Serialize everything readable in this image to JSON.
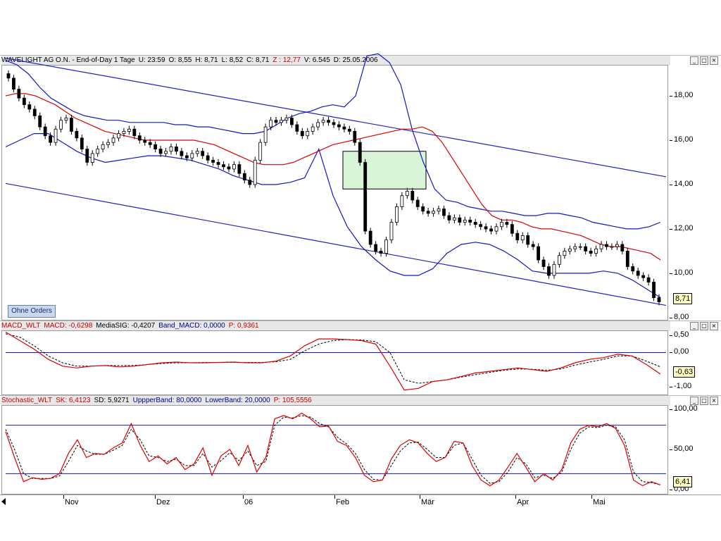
{
  "main_panel": {
    "title_parts": [
      {
        "text": "WAVELIGHT AG O.N. - End-of-Day 1 Tage",
        "color": "blk"
      },
      {
        "text": "U: 23:59",
        "color": "blk"
      },
      {
        "text": "O: 8,55",
        "color": "blk"
      },
      {
        "text": "H: 8,71",
        "color": "blk"
      },
      {
        "text": "L: 8,52",
        "color": "blk"
      },
      {
        "text": "C: 8,71",
        "color": "blk"
      },
      {
        "text": "Z : 12,77",
        "color": "red"
      },
      {
        "text": "V: 6.545",
        "color": "blk"
      },
      {
        "text": "D: 25.05.2006",
        "color": "blk"
      }
    ],
    "last_value": "8,71",
    "orders_button": "Ohne Orders"
  },
  "macd_panel": {
    "title_parts": [
      {
        "text": "MACD_WLT",
        "color": "red"
      },
      {
        "text": "MACD: -0,6298",
        "color": "red"
      },
      {
        "text": "MediaSIG: -0,4207",
        "color": "blk"
      },
      {
        "text": "Band_MACD: 0,0000",
        "color": "blu"
      },
      {
        "text": "P: 0,9361",
        "color": "red"
      }
    ],
    "last_value": "-0,63"
  },
  "stoch_panel": {
    "title_parts": [
      {
        "text": "Stochastic_WLT",
        "color": "red"
      },
      {
        "text": "SK: 6,4123",
        "color": "red"
      },
      {
        "text": "SD: 5,9271",
        "color": "blk"
      },
      {
        "text": "UppperBand: 80,0000",
        "color": "blu"
      },
      {
        "text": "LowerBand: 20,0000",
        "color": "blu"
      },
      {
        "text": "P: 105,5556",
        "color": "red"
      }
    ],
    "last_value": "6,41"
  },
  "window_buttons": [
    "_",
    "□",
    "×"
  ],
  "chart_data": [
    {
      "type": "candlestick",
      "title": "WAVELIGHT AG O.N. - End-of-Day 1 Tage",
      "ylim": [
        7.9,
        19.4
      ],
      "y_ticks": [
        "8,00",
        "10,00",
        "12,00",
        "14,00",
        "16,00",
        "18,00"
      ],
      "x_labels": [
        "Nov",
        "Dez",
        "06",
        "Feb",
        "Mär",
        "Apr",
        "Mai"
      ],
      "close_approx": [
        18.8,
        18.3,
        17.9,
        17.6,
        17.4,
        17.1,
        16.6,
        16.2,
        15.9,
        16.5,
        16.9,
        17.0,
        16.4,
        16.1,
        15.6,
        15.0,
        15.4,
        15.6,
        15.8,
        15.9,
        16.1,
        16.3,
        16.4,
        16.5,
        16.2,
        16.0,
        15.9,
        15.8,
        15.6,
        15.4,
        15.5,
        15.7,
        15.5,
        15.3,
        15.2,
        15.4,
        15.5,
        15.3,
        15.1,
        15.0,
        14.9,
        14.8,
        14.7,
        14.9,
        14.5,
        14.2,
        14.0,
        15.1,
        15.9,
        16.6,
        16.9,
        16.8,
        16.9,
        17.0,
        16.7,
        16.4,
        16.2,
        16.4,
        16.6,
        16.8,
        16.9,
        16.8,
        16.7,
        16.6,
        16.5,
        16.4,
        15.9,
        15.0,
        11.9,
        11.3,
        11.0,
        10.9,
        11.5,
        12.3,
        13.0,
        13.5,
        13.7,
        13.3,
        13.0,
        12.8,
        12.7,
        12.8,
        12.9,
        12.6,
        12.4,
        12.5,
        12.3,
        12.4,
        12.3,
        12.2,
        12.1,
        12.0,
        11.9,
        12.1,
        12.3,
        12.2,
        11.8,
        11.5,
        11.7,
        11.3,
        11.2,
        10.6,
        10.3,
        9.9,
        10.4,
        10.8,
        11.0,
        11.1,
        11.2,
        11.2,
        11.0,
        10.9,
        11.1,
        11.3,
        11.2,
        11.2,
        11.3,
        11.0,
        10.3,
        10.1,
        9.9,
        9.8,
        9.6,
        8.9,
        8.71
      ],
      "series": [
        {
          "name": "Moving average",
          "color": "#dd0000",
          "values": [
            18.0,
            18.1,
            18.1,
            18.0,
            17.8,
            17.6,
            17.3,
            17.0,
            16.8,
            16.6,
            16.4,
            16.3,
            16.2,
            16.1,
            16.0,
            16.0,
            16.0,
            16.0,
            16.0,
            16.0,
            15.9,
            15.8,
            15.6,
            15.4,
            15.2,
            15.0,
            14.9,
            14.9,
            14.9,
            15.0,
            15.2,
            15.4,
            15.6,
            15.8,
            15.9,
            16.0,
            16.1,
            16.2,
            16.3,
            16.4,
            16.5,
            16.5,
            16.6,
            16.4,
            15.9,
            15.2,
            14.5,
            13.8,
            13.1,
            12.6,
            12.4,
            12.4,
            12.3,
            12.1,
            12.0,
            12.0,
            11.9,
            11.8,
            11.7,
            11.5,
            11.3,
            11.2,
            11.2,
            11.1,
            11.0,
            10.9,
            10.6
          ]
        },
        {
          "name": "Bollinger upper",
          "color": "#1010c0",
          "values": [
            19.6,
            19.4,
            19.0,
            18.4,
            17.9,
            17.6,
            17.3,
            17.1,
            17.0,
            16.9,
            16.9,
            16.8,
            16.8,
            16.8,
            16.8,
            16.7,
            16.7,
            16.6,
            16.6,
            16.5,
            16.4,
            16.3,
            16.3,
            16.4,
            16.7,
            17.0,
            17.2,
            17.3,
            17.5,
            17.6,
            17.5,
            18.0,
            19.8,
            19.9,
            19.5,
            18.5,
            16.5,
            15.0,
            13.8,
            13.3,
            13.2,
            13.0,
            12.9,
            12.8,
            12.8,
            12.7,
            12.6,
            12.6,
            12.7,
            12.7,
            12.6,
            12.5,
            12.3,
            12.2,
            12.1,
            12.0,
            12.0,
            12.1,
            12.3
          ]
        },
        {
          "name": "Bollinger lower",
          "color": "#1010c0",
          "values": [
            15.7,
            16.0,
            16.3,
            16.3,
            15.9,
            15.5,
            15.2,
            15.0,
            15.1,
            15.2,
            15.3,
            15.3,
            15.2,
            15.1,
            14.9,
            14.7,
            14.4,
            14.2,
            14.0,
            14.0,
            14.1,
            14.3,
            15.6,
            13.5,
            12.1,
            11.2,
            10.6,
            10.1,
            9.9,
            9.9,
            10.2,
            10.9,
            11.3,
            11.4,
            11.3,
            11.0,
            10.6,
            10.1,
            10.0,
            10.0,
            10.0,
            10.0,
            10.1,
            10.0,
            9.7,
            9.3,
            8.9
          ]
        },
        {
          "name": "Trend channel upper",
          "color": "#2020c0",
          "values": [
            19.7,
            14.35
          ]
        },
        {
          "name": "Trend channel lower",
          "color": "#2020c0",
          "values": [
            14.05,
            8.55
          ]
        }
      ],
      "highlight_box": {
        "x_from": "Feb",
        "price_range": [
          13.8,
          15.5
        ]
      }
    },
    {
      "type": "line",
      "title": "MACD_WLT",
      "ylim": [
        -1.25,
        0.65
      ],
      "y_ticks": [
        "0,50",
        "0,00",
        "-1,00"
      ],
      "band": 0.0,
      "series": [
        {
          "name": "MACD",
          "color": "#dd0000",
          "values": [
            0.6,
            0.35,
            0.1,
            -0.2,
            -0.4,
            -0.45,
            -0.4,
            -0.38,
            -0.42,
            -0.4,
            -0.35,
            -0.3,
            -0.28,
            -0.3,
            -0.3,
            -0.29,
            -0.28,
            -0.3,
            -0.3,
            -0.25,
            -0.1,
            0.2,
            0.4,
            0.4,
            0.38,
            0.35,
            0.25,
            -0.4,
            -1.1,
            -1.05,
            -0.85,
            -0.8,
            -0.7,
            -0.6,
            -0.55,
            -0.5,
            -0.45,
            -0.5,
            -0.55,
            -0.45,
            -0.3,
            -0.2,
            -0.15,
            -0.05,
            -0.1,
            -0.35,
            -0.63
          ]
        },
        {
          "name": "MediaSIG",
          "color": "#000000",
          "values": [
            0.55,
            0.45,
            0.2,
            -0.1,
            -0.3,
            -0.4,
            -0.4,
            -0.38,
            -0.38,
            -0.38,
            -0.35,
            -0.32,
            -0.3,
            -0.3,
            -0.29,
            -0.29,
            -0.29,
            -0.29,
            -0.29,
            -0.27,
            -0.2,
            0.05,
            0.25,
            0.35,
            0.38,
            0.37,
            0.32,
            0.0,
            -0.8,
            -0.9,
            -0.85,
            -0.8,
            -0.72,
            -0.65,
            -0.58,
            -0.52,
            -0.48,
            -0.49,
            -0.52,
            -0.48,
            -0.37,
            -0.28,
            -0.2,
            -0.1,
            -0.1,
            -0.25,
            -0.42
          ]
        }
      ]
    },
    {
      "type": "line",
      "title": "Stochastic_WLT",
      "ylim": [
        -5,
        105
      ],
      "y_ticks": [
        "100,00",
        "50,00",
        "0,00"
      ],
      "bands": [
        80,
        20
      ],
      "series": [
        {
          "name": "SK",
          "color": "#dd0000",
          "values": [
            72,
            40,
            10,
            15,
            13,
            14,
            20,
            45,
            62,
            40,
            45,
            44,
            52,
            58,
            82,
            55,
            35,
            42,
            32,
            40,
            25,
            32,
            52,
            18,
            42,
            50,
            30,
            55,
            22,
            40,
            88,
            92,
            88,
            95,
            88,
            78,
            79,
            60,
            55,
            40,
            18,
            10,
            12,
            38,
            55,
            62,
            58,
            45,
            35,
            40,
            60,
            58,
            30,
            12,
            5,
            12,
            28,
            45,
            28,
            10,
            20,
            12,
            25,
            58,
            75,
            80,
            78,
            82,
            76,
            55,
            12,
            5,
            10,
            6
          ]
        },
        {
          "name": "SD",
          "color": "#000000",
          "values": [
            75,
            50,
            20,
            14,
            14,
            14,
            17,
            35,
            55,
            48,
            44,
            44,
            49,
            55,
            75,
            62,
            42,
            40,
            35,
            38,
            30,
            30,
            45,
            28,
            36,
            46,
            36,
            48,
            30,
            35,
            80,
            90,
            89,
            92,
            90,
            82,
            78,
            65,
            57,
            45,
            25,
            13,
            12,
            30,
            48,
            58,
            59,
            50,
            40,
            40,
            55,
            58,
            38,
            18,
            8,
            10,
            22,
            40,
            32,
            15,
            18,
            14,
            22,
            50,
            70,
            78,
            77,
            80,
            78,
            62,
            22,
            10,
            9,
            6
          ]
        }
      ]
    }
  ]
}
